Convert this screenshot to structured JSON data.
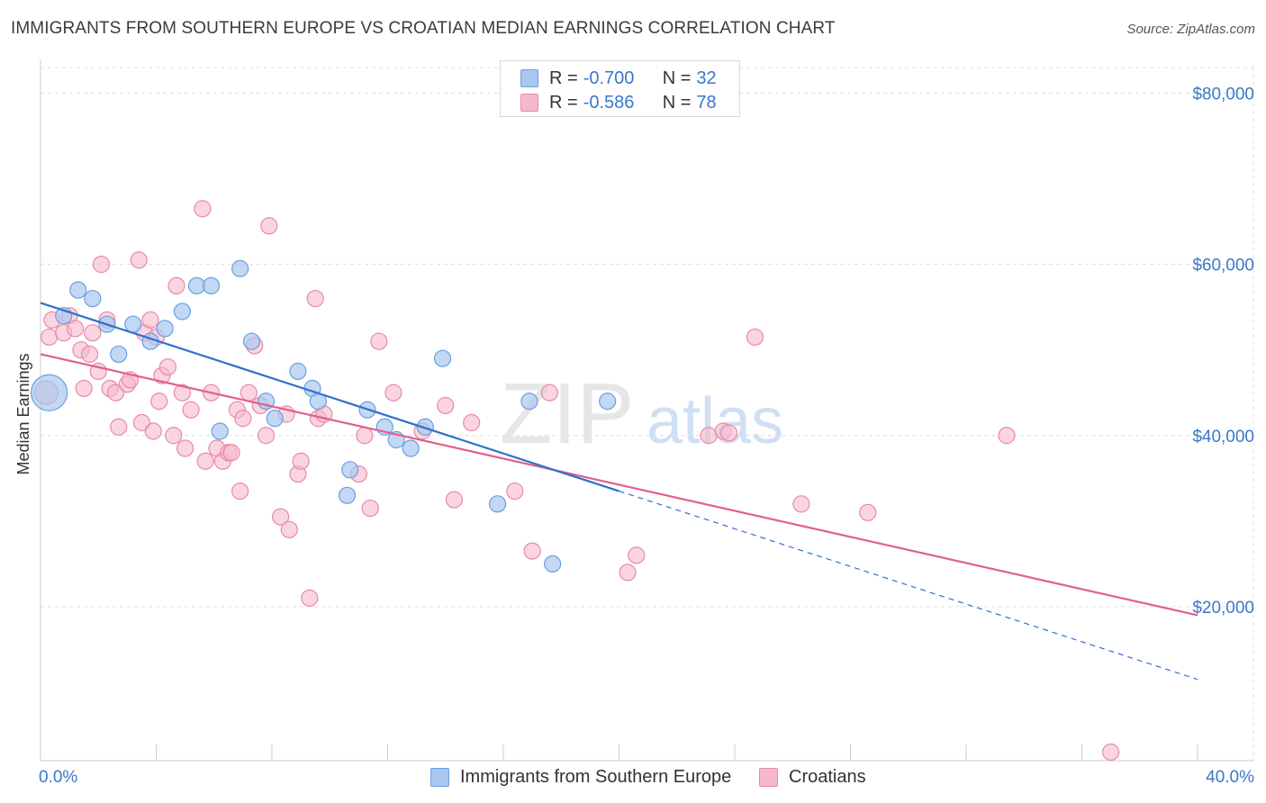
{
  "title": "IMMIGRANTS FROM SOUTHERN EUROPE VS CROATIAN MEDIAN EARNINGS CORRELATION CHART",
  "source": "Source: ZipAtlas.com",
  "watermark": {
    "zip": "ZIP",
    "atlas": "atlas"
  },
  "legend_top": {
    "rows": [
      {
        "r_label": "R =",
        "r_value": "-0.700",
        "n_label": "N =",
        "n_value": "32"
      },
      {
        "r_label": "R =",
        "r_value": "-0.586",
        "n_label": "N =",
        "n_value": "78"
      }
    ]
  },
  "legend_bottom": {
    "items": [
      {
        "label": "Immigrants from Southern Europe"
      },
      {
        "label": "Croatians"
      }
    ]
  },
  "colors": {
    "blue_fill": "#a9c8f0",
    "blue_stroke": "#6a9fe0",
    "blue_line": "#3070d0",
    "pink_fill": "#f6b9cb",
    "pink_stroke": "#e889a6",
    "pink_line": "#e0608c",
    "axis_text": "#3a78c9",
    "grid": "#dcdcdc"
  },
  "chart_data": {
    "type": "scatter",
    "title": "IMMIGRANTS FROM SOUTHERN EUROPE VS CROATIAN MEDIAN EARNINGS CORRELATION CHART",
    "xlabel": "",
    "ylabel": "Median Earnings",
    "xlim": [
      0,
      40
    ],
    "ylim": [
      2000,
      83000
    ],
    "x_tick_labels": [
      {
        "value": 0,
        "label": "0.0%"
      },
      {
        "value": 40,
        "label": "40.0%"
      }
    ],
    "y_ticks": [
      {
        "value": 20000,
        "label": "$20,000"
      },
      {
        "value": 40000,
        "label": "$40,000"
      },
      {
        "value": 60000,
        "label": "$60,000"
      },
      {
        "value": 80000,
        "label": "$80,000"
      }
    ],
    "grid": true,
    "legend_position": "bottom",
    "series": [
      {
        "name": "Immigrants from Southern Europe",
        "color": "#a9c8f0",
        "points": [
          [
            0.3,
            45000
          ],
          [
            0.8,
            54000
          ],
          [
            1.3,
            57000
          ],
          [
            1.8,
            56000
          ],
          [
            2.3,
            53000
          ],
          [
            2.7,
            49500
          ],
          [
            3.2,
            53000
          ],
          [
            3.8,
            51000
          ],
          [
            4.3,
            52500
          ],
          [
            4.9,
            54500
          ],
          [
            5.4,
            57500
          ],
          [
            5.9,
            57500
          ],
          [
            6.2,
            40500
          ],
          [
            6.9,
            59500
          ],
          [
            7.3,
            51000
          ],
          [
            7.8,
            44000
          ],
          [
            8.1,
            42000
          ],
          [
            8.9,
            47500
          ],
          [
            9.4,
            45500
          ],
          [
            9.6,
            44000
          ],
          [
            10.7,
            36000
          ],
          [
            10.6,
            33000
          ],
          [
            11.3,
            43000
          ],
          [
            11.9,
            41000
          ],
          [
            12.3,
            39500
          ],
          [
            12.8,
            38500
          ],
          [
            13.3,
            41000
          ],
          [
            13.9,
            49000
          ],
          [
            15.8,
            32000
          ],
          [
            16.9,
            44000
          ],
          [
            17.7,
            25000
          ],
          [
            19.6,
            44000
          ]
        ],
        "trend": {
          "x0": 0,
          "y0": 55500,
          "x1": 20,
          "y1": 33500,
          "dash_x1": 40,
          "dash_y1": 11500
        }
      },
      {
        "name": "Croatians",
        "color": "#f6b9cb",
        "points": [
          [
            0.2,
            45000
          ],
          [
            0.3,
            51500
          ],
          [
            0.4,
            53500
          ],
          [
            0.8,
            52000
          ],
          [
            1.0,
            54000
          ],
          [
            1.2,
            52500
          ],
          [
            1.4,
            50000
          ],
          [
            1.5,
            45500
          ],
          [
            1.7,
            49500
          ],
          [
            1.8,
            52000
          ],
          [
            2.0,
            47500
          ],
          [
            2.1,
            60000
          ],
          [
            2.3,
            53500
          ],
          [
            2.4,
            45500
          ],
          [
            2.6,
            45000
          ],
          [
            2.7,
            41000
          ],
          [
            3.0,
            46000
          ],
          [
            3.1,
            46500
          ],
          [
            3.4,
            60500
          ],
          [
            3.5,
            41500
          ],
          [
            3.6,
            52000
          ],
          [
            3.8,
            53500
          ],
          [
            3.9,
            40500
          ],
          [
            4.0,
            51500
          ],
          [
            4.1,
            44000
          ],
          [
            4.2,
            47000
          ],
          [
            4.4,
            48000
          ],
          [
            4.6,
            40000
          ],
          [
            4.7,
            57500
          ],
          [
            4.9,
            45000
          ],
          [
            5.0,
            38500
          ],
          [
            5.2,
            43000
          ],
          [
            5.6,
            66500
          ],
          [
            5.7,
            37000
          ],
          [
            5.9,
            45000
          ],
          [
            6.1,
            38500
          ],
          [
            6.3,
            37000
          ],
          [
            6.5,
            38000
          ],
          [
            6.6,
            38000
          ],
          [
            6.8,
            43000
          ],
          [
            6.9,
            33500
          ],
          [
            7.0,
            42000
          ],
          [
            7.2,
            45000
          ],
          [
            7.4,
            50500
          ],
          [
            7.6,
            43500
          ],
          [
            7.8,
            40000
          ],
          [
            7.9,
            64500
          ],
          [
            8.3,
            30500
          ],
          [
            8.5,
            42500
          ],
          [
            8.6,
            29000
          ],
          [
            8.9,
            35500
          ],
          [
            9.0,
            37000
          ],
          [
            9.3,
            21000
          ],
          [
            9.5,
            56000
          ],
          [
            9.6,
            42000
          ],
          [
            9.8,
            42500
          ],
          [
            11.0,
            35500
          ],
          [
            11.2,
            40000
          ],
          [
            11.4,
            31500
          ],
          [
            11.7,
            51000
          ],
          [
            12.2,
            45000
          ],
          [
            13.2,
            40500
          ],
          [
            14.0,
            43500
          ],
          [
            14.3,
            32500
          ],
          [
            14.9,
            41500
          ],
          [
            16.4,
            33500
          ],
          [
            17.0,
            26500
          ],
          [
            17.6,
            45000
          ],
          [
            20.3,
            24000
          ],
          [
            20.6,
            26000
          ],
          [
            23.1,
            40000
          ],
          [
            23.6,
            40500
          ],
          [
            24.7,
            51500
          ],
          [
            26.3,
            32000
          ],
          [
            28.6,
            31000
          ],
          [
            33.4,
            40000
          ],
          [
            37.0,
            3000
          ],
          [
            23.8,
            40300
          ]
        ],
        "trend": {
          "x0": 0,
          "y0": 49500,
          "x1": 40,
          "y1": 19000
        }
      }
    ]
  }
}
